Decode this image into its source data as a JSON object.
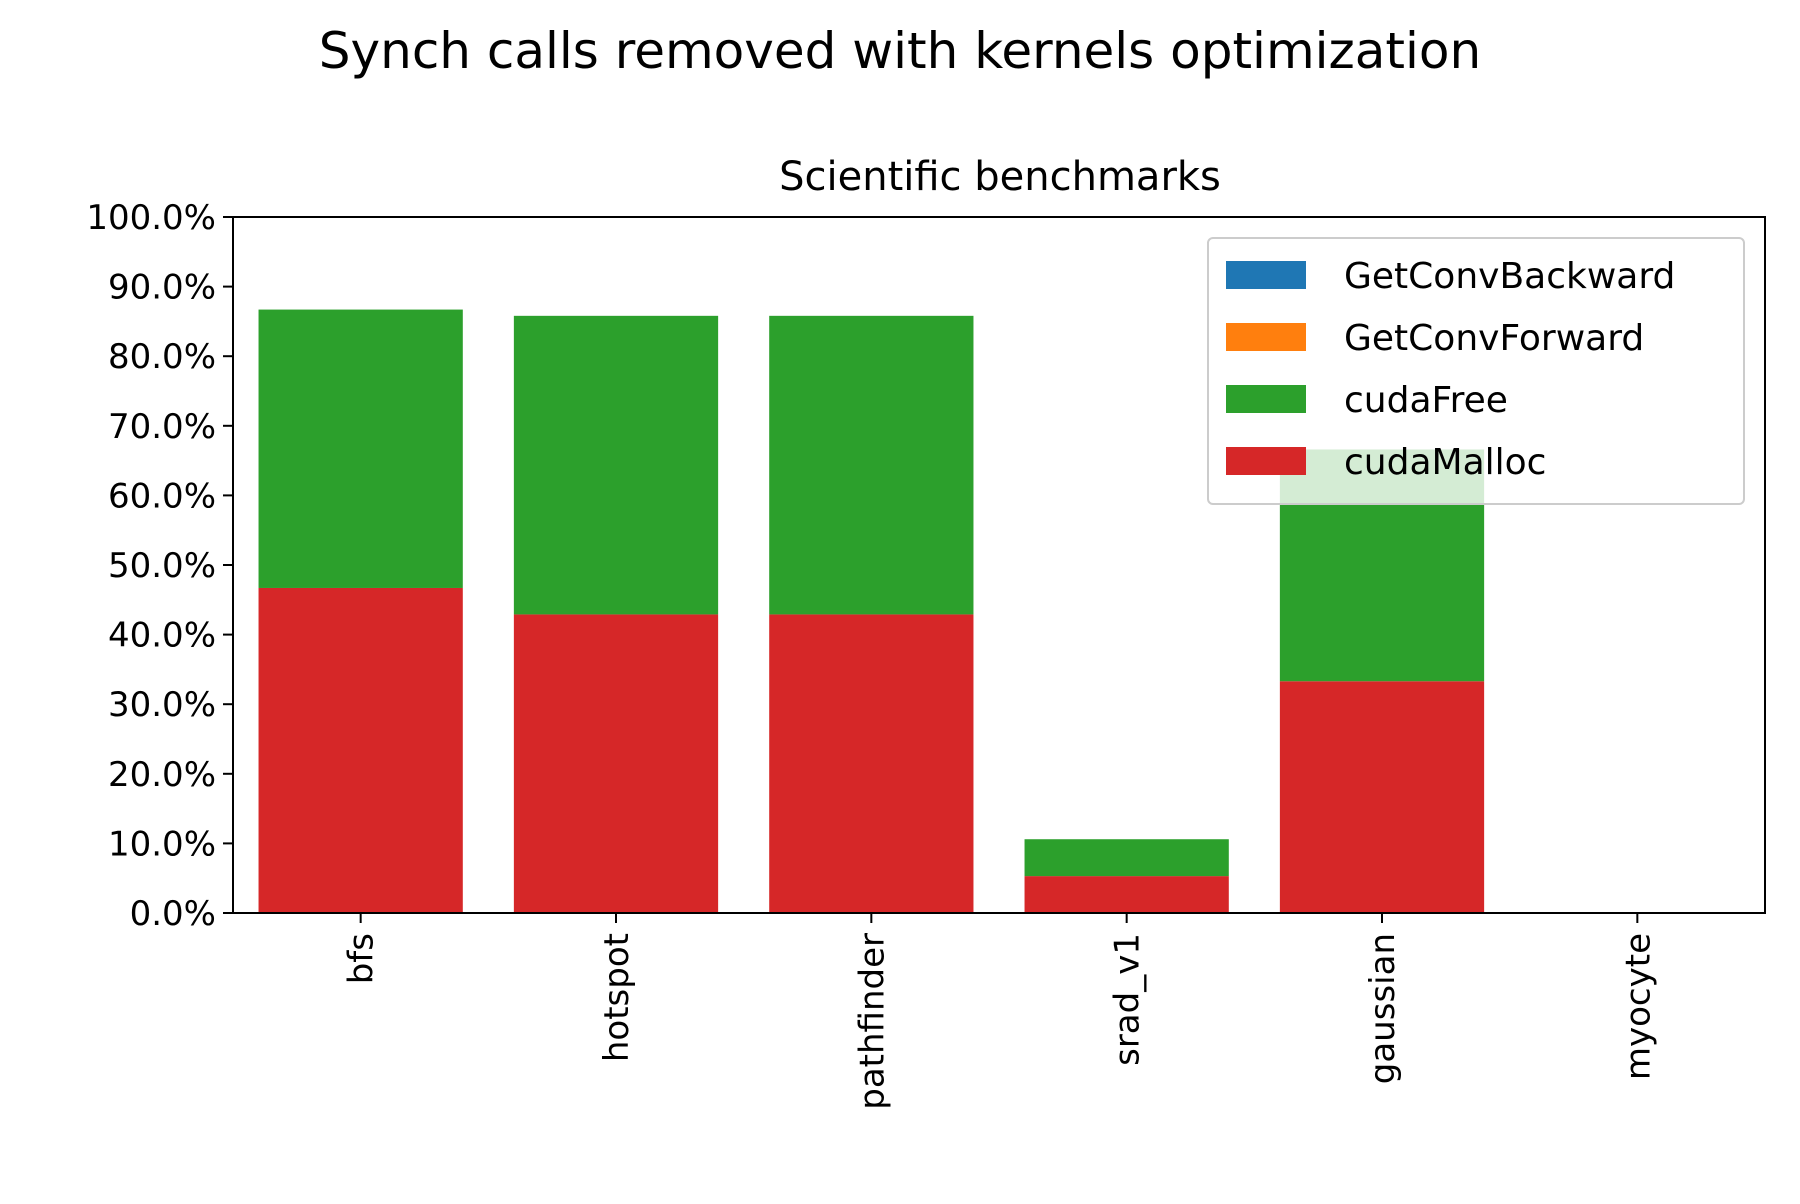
{
  "figure_title": "Synch calls removed with kernels optimization",
  "chart_data": {
    "type": "bar",
    "stacked": true,
    "title": "Scientific benchmarks",
    "xlabel": "",
    "ylabel": "",
    "categories": [
      "bfs",
      "hotspot",
      "pathfinder",
      "srad_v1",
      "gaussian",
      "myocyte"
    ],
    "ylim": [
      0,
      100
    ],
    "yticks": [
      "0.0%",
      "10.0%",
      "20.0%",
      "30.0%",
      "40.0%",
      "50.0%",
      "60.0%",
      "70.0%",
      "80.0%",
      "90.0%",
      "100.0%"
    ],
    "y_unit": "%",
    "grid": false,
    "legend_position": "top-right",
    "series": [
      {
        "name": "GetConvBackward",
        "color": "#1f77b4",
        "values": [
          0,
          0,
          0,
          0,
          0,
          0
        ]
      },
      {
        "name": "GetConvForward",
        "color": "#ff7f0e",
        "values": [
          0,
          0,
          0,
          0,
          0,
          0
        ]
      },
      {
        "name": "cudaFree",
        "color": "#2ca02c",
        "values": [
          40.0,
          42.9,
          42.9,
          5.3,
          33.3,
          0
        ]
      },
      {
        "name": "cudaMalloc",
        "color": "#d62728",
        "values": [
          46.7,
          42.9,
          42.9,
          5.3,
          33.3,
          0
        ]
      }
    ],
    "stack_order_bottom_to_top": [
      "cudaMalloc",
      "cudaFree",
      "GetConvForward",
      "GetConvBackward"
    ]
  }
}
